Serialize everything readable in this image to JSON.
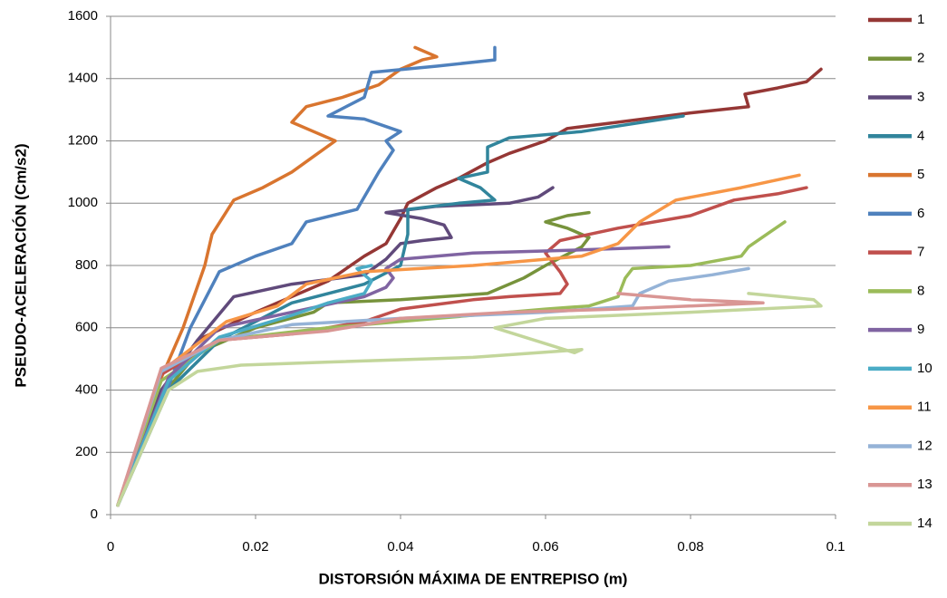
{
  "chart_data": {
    "type": "line",
    "xlabel": "DISTORSIÓN MÁXIMA DE ENTREPISO (m)",
    "ylabel": "PSEUDO-ACELERACIÓN (Cm/s2)",
    "xlim": [
      0,
      0.1
    ],
    "xticks": [
      0,
      0.02,
      0.04,
      0.06,
      0.08,
      0.1
    ],
    "ylim": [
      0,
      1600
    ],
    "yticks": [
      0,
      200,
      400,
      600,
      800,
      1000,
      1200,
      1400,
      1600
    ],
    "grid": true,
    "legend": "right",
    "series": [
      {
        "name": "1",
        "color": "#953735",
        "x": [
          0.001,
          0.007,
          0.012,
          0.02,
          0.03,
          0.035,
          0.038,
          0.04,
          0.041,
          0.045,
          0.048,
          0.052,
          0.055,
          0.06,
          0.063,
          0.07,
          0.08,
          0.088,
          0.0875,
          0.092,
          0.096,
          0.098
        ],
        "values": [
          30,
          400,
          560,
          650,
          750,
          830,
          870,
          950,
          1000,
          1050,
          1080,
          1130,
          1160,
          1200,
          1240,
          1260,
          1290,
          1310,
          1350,
          1370,
          1390,
          1430
        ]
      },
      {
        "name": "2",
        "color": "#77933c",
        "x": [
          0.001,
          0.007,
          0.012,
          0.02,
          0.028,
          0.03,
          0.04,
          0.052,
          0.057,
          0.06,
          0.065,
          0.066,
          0.063,
          0.06,
          0.063,
          0.066
        ],
        "values": [
          30,
          380,
          520,
          600,
          650,
          680,
          690,
          710,
          760,
          800,
          860,
          890,
          920,
          940,
          960,
          970
        ]
      },
      {
        "name": "3",
        "color": "#604a7b",
        "x": [
          0.001,
          0.007,
          0.012,
          0.017,
          0.025,
          0.035,
          0.038,
          0.04,
          0.043,
          0.047,
          0.046,
          0.043,
          0.038,
          0.045,
          0.055,
          0.059,
          0.061
        ],
        "values": [
          30,
          400,
          560,
          700,
          740,
          770,
          820,
          870,
          880,
          890,
          930,
          950,
          970,
          990,
          1000,
          1020,
          1050
        ]
      },
      {
        "name": "4",
        "color": "#31859c",
        "x": [
          0.001,
          0.008,
          0.015,
          0.025,
          0.035,
          0.04,
          0.041,
          0.041,
          0.048,
          0.053,
          0.051,
          0.048,
          0.052,
          0.052,
          0.055,
          0.065,
          0.079
        ],
        "values": [
          30,
          400,
          560,
          680,
          740,
          800,
          900,
          980,
          1000,
          1010,
          1050,
          1080,
          1100,
          1180,
          1210,
          1230,
          1280
        ]
      },
      {
        "name": "5",
        "color": "#d9752f",
        "x": [
          0.001,
          0.007,
          0.01,
          0.013,
          0.014,
          0.017,
          0.021,
          0.025,
          0.028,
          0.031,
          0.028,
          0.025,
          0.027,
          0.032,
          0.037,
          0.04,
          0.043,
          0.045,
          0.042
        ],
        "values": [
          30,
          440,
          600,
          800,
          900,
          1010,
          1050,
          1100,
          1150,
          1200,
          1230,
          1260,
          1310,
          1340,
          1380,
          1430,
          1460,
          1470,
          1500
        ]
      },
      {
        "name": "6",
        "color": "#4f81bd",
        "x": [
          0.001,
          0.007,
          0.011,
          0.015,
          0.02,
          0.025,
          0.027,
          0.034,
          0.037,
          0.039,
          0.038,
          0.04,
          0.035,
          0.03,
          0.035,
          0.036,
          0.045,
          0.053,
          0.053
        ],
        "values": [
          30,
          350,
          600,
          780,
          830,
          870,
          940,
          980,
          1100,
          1170,
          1200,
          1230,
          1270,
          1280,
          1340,
          1420,
          1440,
          1460,
          1500
        ]
      },
      {
        "name": "7",
        "color": "#c0504d",
        "x": [
          0.001,
          0.007,
          0.015,
          0.025,
          0.035,
          0.04,
          0.05,
          0.055,
          0.062,
          0.063,
          0.062,
          0.06,
          0.062,
          0.07,
          0.08,
          0.086,
          0.092,
          0.096
        ],
        "values": [
          30,
          450,
          560,
          580,
          620,
          660,
          690,
          700,
          710,
          740,
          780,
          840,
          880,
          920,
          960,
          1010,
          1030,
          1050
        ]
      },
      {
        "name": "8",
        "color": "#9bbb59",
        "x": [
          0.001,
          0.007,
          0.015,
          0.03,
          0.045,
          0.06,
          0.066,
          0.07,
          0.071,
          0.072,
          0.08,
          0.087,
          0.088,
          0.093
        ],
        "values": [
          30,
          430,
          560,
          600,
          630,
          660,
          670,
          700,
          760,
          790,
          800,
          830,
          860,
          940
        ]
      },
      {
        "name": "9",
        "color": "#8064a2",
        "x": [
          0.001,
          0.008,
          0.015,
          0.025,
          0.035,
          0.038,
          0.039,
          0.038,
          0.04,
          0.05,
          0.065,
          0.077
        ],
        "values": [
          30,
          440,
          600,
          650,
          700,
          730,
          760,
          790,
          820,
          840,
          850,
          860
        ]
      },
      {
        "name": "10",
        "color": "#4bacc6",
        "x": [
          0.001,
          0.008,
          0.015,
          0.025,
          0.03,
          0.035,
          0.036,
          0.034,
          0.036
        ],
        "values": [
          30,
          430,
          570,
          640,
          680,
          710,
          750,
          790,
          800
        ]
      },
      {
        "name": "11",
        "color": "#f79646",
        "x": [
          0.001,
          0.007,
          0.016,
          0.023,
          0.027,
          0.035,
          0.05,
          0.065,
          0.07,
          0.073,
          0.078,
          0.087,
          0.095
        ],
        "values": [
          30,
          460,
          620,
          670,
          740,
          780,
          800,
          830,
          870,
          940,
          1010,
          1050,
          1090
        ]
      },
      {
        "name": "12",
        "color": "#95b3d7",
        "x": [
          0.001,
          0.007,
          0.015,
          0.025,
          0.04,
          0.06,
          0.072,
          0.073,
          0.077,
          0.083,
          0.088
        ],
        "values": [
          30,
          460,
          560,
          610,
          630,
          650,
          670,
          710,
          750,
          770,
          790
        ]
      },
      {
        "name": "13",
        "color": "#d99694",
        "x": [
          0.001,
          0.007,
          0.015,
          0.03,
          0.04,
          0.055,
          0.07,
          0.09,
          0.08,
          0.07
        ],
        "values": [
          30,
          470,
          560,
          590,
          630,
          650,
          660,
          680,
          690,
          710
        ]
      },
      {
        "name": "14",
        "color": "#c3d69b",
        "x": [
          0.001,
          0.008,
          0.012,
          0.018,
          0.03,
          0.05,
          0.065,
          0.064,
          0.053,
          0.06,
          0.08,
          0.098,
          0.097,
          0.088
        ],
        "values": [
          30,
          400,
          460,
          480,
          490,
          505,
          530,
          520,
          600,
          630,
          650,
          670,
          690,
          710
        ]
      }
    ]
  }
}
